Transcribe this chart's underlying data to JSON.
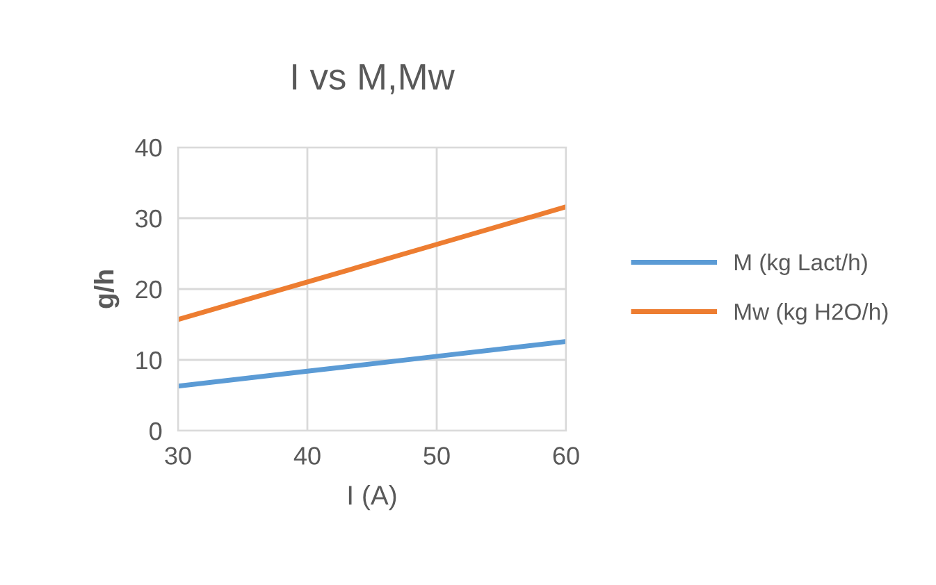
{
  "chart_data": {
    "type": "line",
    "title": "I vs M,Mw",
    "xlabel": "I (A)",
    "ylabel": "g/h",
    "x": [
      30,
      40,
      50,
      60
    ],
    "series": [
      {
        "name": "M (kg Lact/h)",
        "color": "#5b9bd5",
        "values": [
          6.3,
          8.4,
          10.5,
          12.6
        ]
      },
      {
        "name": "Mw (kg H2O/h)",
        "color": "#ed7d31",
        "values": [
          15.7,
          21.0,
          26.3,
          31.6
        ]
      }
    ],
    "xlim": [
      30,
      60
    ],
    "xticks": [
      30,
      40,
      50,
      60
    ],
    "ylim": [
      0,
      40
    ],
    "yticks": [
      0,
      10,
      20,
      30,
      40
    ],
    "grid": true,
    "legend": "right",
    "marker": "none",
    "line_style": "solid"
  }
}
